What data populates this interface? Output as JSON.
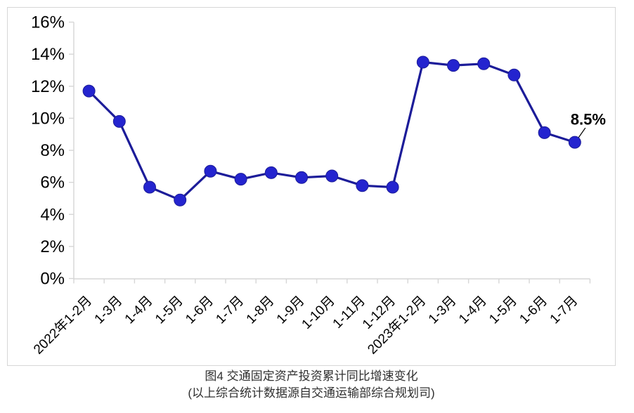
{
  "chart_data": {
    "type": "line",
    "title": "图4  交通固定资产投资累计同比增速变化",
    "subtitle": "(以上综合统计数据源自交通运输部综合规划司)",
    "categories": [
      "2022年1-2月",
      "1-3月",
      "1-4月",
      "1-5月",
      "1-6月",
      "1-7月",
      "1-8月",
      "1-9月",
      "1-10月",
      "1-11月",
      "1-12月",
      "2023年1-2月",
      "1-3月",
      "1-4月",
      "1-5月",
      "1-6月",
      "1-7月"
    ],
    "values": [
      11.7,
      9.8,
      5.7,
      4.9,
      6.7,
      6.2,
      6.6,
      6.3,
      6.4,
      5.8,
      5.7,
      13.5,
      13.3,
      13.4,
      12.7,
      9.1,
      8.5
    ],
    "y_tick_labels": [
      "0%",
      "2%",
      "4%",
      "6%",
      "8%",
      "10%",
      "12%",
      "14%",
      "16%"
    ],
    "ylim": [
      0,
      16
    ],
    "y_step": 2,
    "grid": false,
    "legend_position": "none",
    "annotation": {
      "text": "8.5%",
      "index": 16
    },
    "colors": {
      "line": "#1C1C99",
      "marker": "#2424CF",
      "axis": "#D6D6D6",
      "label": "#000000",
      "annotation": "#000000"
    }
  }
}
